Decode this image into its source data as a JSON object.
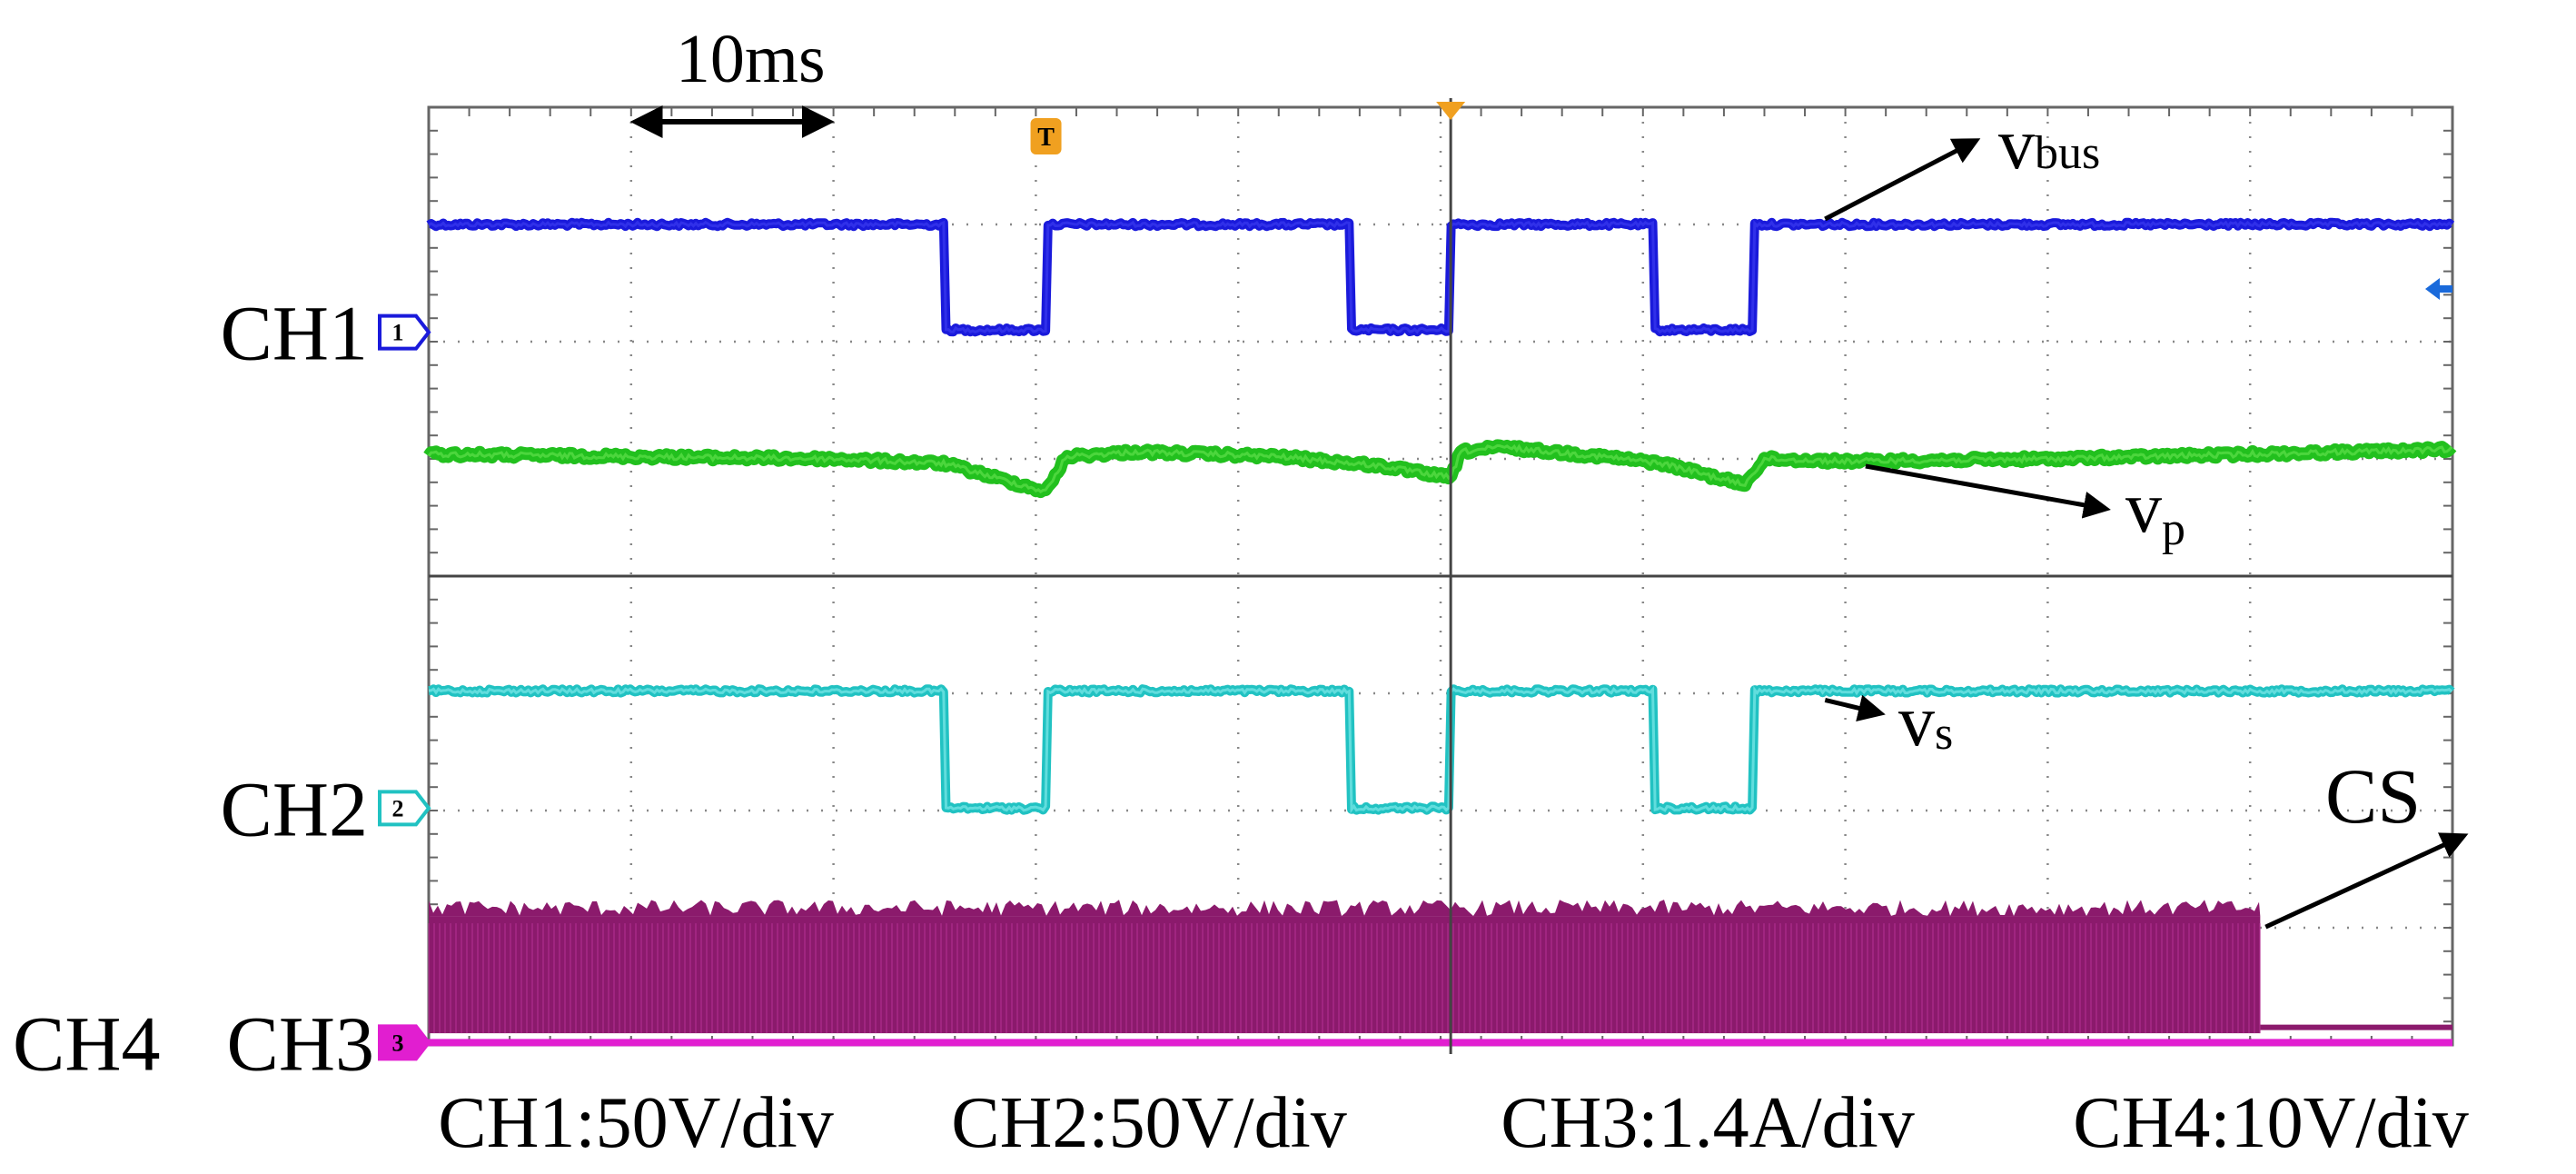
{
  "chart_data": {
    "type": "line",
    "title": "",
    "x": {
      "unit": "ms",
      "range": [
        0,
        100
      ],
      "divisions": 10,
      "scale_label": "10ms",
      "scale_bar_ms": 10
    },
    "y": {
      "divisions": 8,
      "range_div": [
        -4,
        4
      ]
    },
    "channels": [
      {
        "id": "CH1",
        "label": "CH1",
        "marker": "1",
        "ground_div": 2.08,
        "color": "#1a1adb"
      },
      {
        "id": "CH2",
        "label": "CH2",
        "marker": "2",
        "ground_div": -1.98,
        "color": "#21c2c2"
      },
      {
        "id": "CH3",
        "label": "CH3",
        "marker": "3",
        "ground_div": -3.98,
        "color": "#e11ed0"
      },
      {
        "id": "CH4",
        "label": "CH4",
        "color": "#8b1a6c"
      }
    ],
    "series": [
      {
        "name": "vbus",
        "channel": "CH1",
        "color": "#1a1adb",
        "times": [
          0,
          25.5,
          25.5,
          30.5,
          30.5,
          45.5,
          45.5,
          50.5,
          50.5,
          60.5,
          60.5,
          65.5,
          65.5,
          100
        ],
        "values": [
          3.0,
          3.0,
          2.1,
          2.1,
          3.0,
          3.0,
          2.1,
          2.1,
          3.0,
          3.0,
          2.1,
          2.1,
          3.0,
          3.0
        ]
      },
      {
        "name": "vp",
        "channel": "CH1",
        "color": "#22c01e",
        "times": [
          0,
          10,
          20,
          25.5,
          28,
          30.5,
          31.5,
          35,
          42,
          47,
          50.5,
          51,
          53,
          58,
          61,
          65,
          66,
          70,
          80,
          90,
          100
        ],
        "values": [
          1.04,
          1.02,
          1.0,
          0.96,
          0.84,
          0.72,
          1.02,
          1.06,
          1.02,
          0.94,
          0.84,
          1.06,
          1.1,
          1.02,
          0.96,
          0.78,
          1.0,
          0.98,
          1.0,
          1.04,
          1.08
        ]
      },
      {
        "name": "vs",
        "channel": "CH2",
        "color": "#21c2c2",
        "times": [
          0,
          25.5,
          25.5,
          30.5,
          30.5,
          45.5,
          45.5,
          50.5,
          50.5,
          60.5,
          60.5,
          65.5,
          65.5,
          100
        ],
        "values": [
          -0.98,
          -0.98,
          -1.98,
          -1.98,
          -0.98,
          -0.98,
          -1.98,
          -1.98,
          -0.98,
          -0.98,
          -1.98,
          -1.98,
          -0.98,
          -0.98
        ]
      },
      {
        "name": "CS",
        "channel": "CH4",
        "color": "#8b1a6c",
        "times": [
          0,
          90.5,
          90.5,
          100
        ],
        "values": [
          -2.9,
          -2.9,
          -3.85,
          -3.85
        ],
        "band_bottom": -3.9
      },
      {
        "name": "CH3 current",
        "channel": "CH3",
        "color": "#e11ed0",
        "times": [
          0,
          100
        ],
        "values": [
          -3.98,
          -3.98
        ]
      }
    ],
    "trigger": {
      "marker": "T",
      "time_ms": 30.5
    },
    "cursor": {
      "time_ms": 50.5,
      "level_div": 0
    },
    "annotations": [
      {
        "name": "vbus-label",
        "text": "v",
        "sub": "bus",
        "points_to_ms": 69,
        "points_to_div": 3.0
      },
      {
        "name": "vp-label",
        "text": "v",
        "sub": "p",
        "points_to_ms": 71,
        "points_to_div": 1.0
      },
      {
        "name": "vs-label",
        "text": "v",
        "sub": "s",
        "points_to_ms": 69,
        "points_to_div": -0.98
      },
      {
        "name": "cs-label",
        "text": "CS",
        "points_to_ms": 90.5,
        "points_to_div": -2.9
      }
    ],
    "scales": [
      "CH1:50V/div",
      "CH2:50V/div",
      "CH3:1.4A/div",
      "CH4:10V/div"
    ]
  }
}
